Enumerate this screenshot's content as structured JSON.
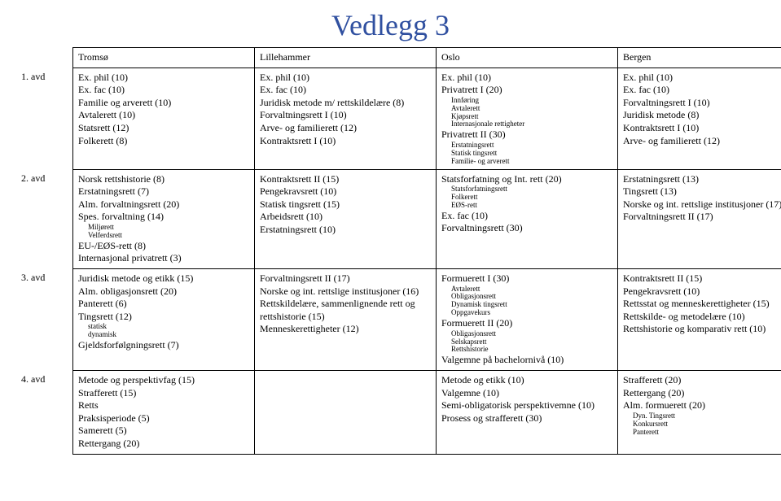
{
  "handwritten": "Vedlegg 3",
  "headers": [
    "Tromsø",
    "Lillehammer",
    "Oslo",
    "Bergen"
  ],
  "rows": [
    {
      "label": "1. avd",
      "cells": [
        {
          "lines": [
            {
              "t": "Ex. phil (10)"
            },
            {
              "t": "Ex. fac (10)"
            },
            {
              "t": "Familie og arverett (10)"
            },
            {
              "t": "Avtalerett (10)"
            },
            {
              "t": "Statsrett (12)"
            },
            {
              "t": "Folkerett (8)"
            }
          ]
        },
        {
          "lines": [
            {
              "t": "Ex. phil (10)"
            },
            {
              "t": "Ex. fac (10)"
            },
            {
              "t": "Juridisk metode m/ rettskildelære (8)"
            },
            {
              "t": "Forvaltningsrett I (10)"
            },
            {
              "t": "Arve- og familierett (12)"
            },
            {
              "t": "Kontraktsrett I (10)"
            }
          ]
        },
        {
          "lines": [
            {
              "t": "Ex. phil (10)"
            },
            {
              "t": "Privatrett I (20)"
            },
            {
              "t": "Innføring",
              "s": true
            },
            {
              "t": "Avtalerett",
              "s": true
            },
            {
              "t": "Kjøpsrett",
              "s": true
            },
            {
              "t": "Internasjonale rettigheter",
              "s": true
            },
            {
              "t": "Privatrett II (30)"
            },
            {
              "t": "Erstatningsrett",
              "s": true
            },
            {
              "t": "Statisk tingsrett",
              "s": true
            },
            {
              "t": "Familie- og arverett",
              "s": true
            }
          ]
        },
        {
          "lines": [
            {
              "t": "Ex. phil (10)"
            },
            {
              "t": "Ex. fac (10)"
            },
            {
              "t": "Forvaltningsrett I (10)"
            },
            {
              "t": "Juridisk metode (8)"
            },
            {
              "t": "Kontraktsrett I (10)"
            },
            {
              "t": "Arve- og familierett (12)"
            }
          ]
        }
      ]
    },
    {
      "label": "2. avd",
      "cells": [
        {
          "lines": [
            {
              "t": "Norsk rettshistorie (8)"
            },
            {
              "t": "Erstatningsrett (7)"
            },
            {
              "t": "Alm. forvaltningsrett (20)"
            },
            {
              "t": "Spes. forvaltning (14)"
            },
            {
              "t": "Miljørett",
              "s": true
            },
            {
              "t": "Velferdsrett",
              "s": true
            },
            {
              "t": "EU-/EØS-rett (8)"
            },
            {
              "t": "Internasjonal privatrett (3)"
            }
          ]
        },
        {
          "lines": [
            {
              "t": "Kontraktsrett II (15)"
            },
            {
              "t": "Pengekravsrett (10)"
            },
            {
              "t": "Statisk tingsrett (15)"
            },
            {
              "t": "Arbeidsrett (10)"
            },
            {
              "t": "Erstatningsrett (10)"
            }
          ]
        },
        {
          "lines": [
            {
              "t": "Statsforfatning og Int. rett (20)"
            },
            {
              "t": "Statsforfatningsrett",
              "s": true
            },
            {
              "t": "Folkerett",
              "s": true
            },
            {
              "t": "EØS-rett",
              "s": true
            },
            {
              "t": "Ex. fac (10)"
            },
            {
              "t": "Forvaltningsrett (30)"
            }
          ]
        },
        {
          "lines": [
            {
              "t": "Erstatningsrett (13)"
            },
            {
              "t": "Tingsrett (13)"
            },
            {
              "t": "Norske og int. rettslige institusjoner (17)"
            },
            {
              "t": "Forvaltningsrett II (17)"
            }
          ]
        }
      ]
    },
    {
      "label": "3. avd",
      "cells": [
        {
          "lines": [
            {
              "t": "Juridisk metode og etikk (15)"
            },
            {
              "t": "Alm. obligasjonsrett (20)"
            },
            {
              "t": "Panterett (6)"
            },
            {
              "t": "Tingsrett (12)"
            },
            {
              "t": "statisk",
              "s": true
            },
            {
              "t": "dynamisk",
              "s": true
            },
            {
              "t": "Gjeldsforfølgningsrett (7)"
            }
          ]
        },
        {
          "lines": [
            {
              "t": "Forvaltningsrett II (17)"
            },
            {
              "t": "Norske og int. rettslige institusjoner (16)"
            },
            {
              "t": "Rettskildelære, sammenlignende rett og rettshistorie (15)"
            },
            {
              "t": "Menneskerettigheter (12)"
            }
          ]
        },
        {
          "lines": [
            {
              "t": "Formuerett I (30)"
            },
            {
              "t": "Avtalerett",
              "s": true
            },
            {
              "t": "Obligasjonsrett",
              "s": true
            },
            {
              "t": "Dynamisk tingsrett",
              "s": true
            },
            {
              "t": "Oppgavekurs",
              "s": true
            },
            {
              "t": "Formuerett II (20)"
            },
            {
              "t": "Obligasjonsrett",
              "s": true
            },
            {
              "t": "Selskapsrett",
              "s": true
            },
            {
              "t": "Rettshistorie",
              "s": true
            },
            {
              "t": "Valgemne på bachelornivå (10)"
            }
          ]
        },
        {
          "lines": [
            {
              "t": "Kontraktsrett II (15)"
            },
            {
              "t": "Pengekravsrett (10)"
            },
            {
              "t": "Rettsstat og menneskerettigheter (15)"
            },
            {
              "t": "Rettskilde- og metodelære (10)"
            },
            {
              "t": "Rettshistorie og komparativ rett (10)"
            }
          ]
        }
      ]
    },
    {
      "label": "4. avd",
      "cells": [
        {
          "lines": [
            {
              "t": "Metode og perspektivfag (15)"
            },
            {
              "t": "Strafferett (15)"
            },
            {
              "t": "Retts"
            },
            {
              "t": "Praksisperiode (5)"
            },
            {
              "t": "Samerett (5)"
            },
            {
              "t": "Rettergang (20)"
            }
          ]
        },
        {
          "lines": []
        },
        {
          "lines": [
            {
              "t": "Metode og etikk (10)"
            },
            {
              "t": "Valgemne (10)"
            },
            {
              "t": "Semi-obligatorisk perspektivemne (10)"
            },
            {
              "t": "Prosess og strafferett (30)"
            }
          ]
        },
        {
          "lines": [
            {
              "t": "Strafferett (20)"
            },
            {
              "t": "Rettergang (20)"
            },
            {
              "t": "Alm. formuerett (20)"
            },
            {
              "t": "Dyn. Tingsrett",
              "s": true
            },
            {
              "t": "Konkursrett",
              "s": true
            },
            {
              "t": "Panterett",
              "s": true
            }
          ]
        }
      ]
    }
  ]
}
